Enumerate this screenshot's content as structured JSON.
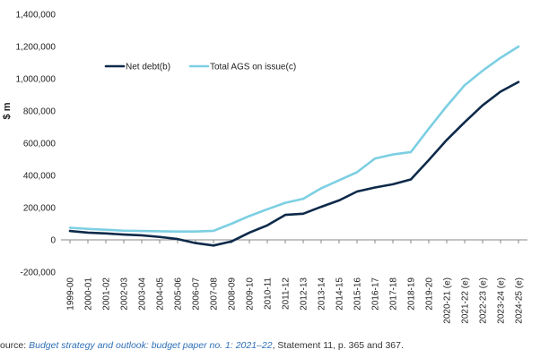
{
  "colors": {
    "net_debt": "#0d2a4a",
    "ags": "#7ccfe2",
    "axis": "#888888",
    "tick_text": "#222222",
    "source_link": "#2e6fb7"
  },
  "chart_data": {
    "type": "line",
    "ylabel": "$ m",
    "ylim": [
      -200000,
      1400000
    ],
    "yticks": [
      -200000,
      0,
      200000,
      400000,
      600000,
      800000,
      1000000,
      1200000,
      1400000
    ],
    "ytick_labels": [
      "-200,000",
      "0",
      "200,000",
      "400,000",
      "600,000",
      "800,000",
      "1,000,000",
      "1,200,000",
      "1,400,000"
    ],
    "grid": false,
    "legend_position": "top-left",
    "categories": [
      "1999-00",
      "2000-01",
      "2001-02",
      "2002-03",
      "2003-04",
      "2004-05",
      "2005-06",
      "2006-07",
      "2007-08",
      "2008-09",
      "2009-10",
      "2010-11",
      "2011-12",
      "2012-13",
      "2013-14",
      "2014-15",
      "2015-16",
      "2016-17",
      "2017-18",
      "2018-19",
      "2019-20",
      "2020-21 (e)",
      "2021-22 (e)",
      "2022-23 (e)",
      "2023-24 (e)",
      "2024-25 (e)"
    ],
    "series": [
      {
        "name": "Net debt(b)",
        "color_key": "net_debt",
        "values": [
          55000,
          45000,
          40000,
          33000,
          28000,
          18000,
          5000,
          -20000,
          -35000,
          -10000,
          45000,
          90000,
          155000,
          162000,
          205000,
          245000,
          300000,
          325000,
          345000,
          375000,
          495000,
          620000,
          730000,
          835000,
          920000,
          980000
        ]
      },
      {
        "name": "Total AGS on issue(c)",
        "color_key": "ags",
        "values": [
          75000,
          68000,
          63000,
          57000,
          55000,
          53000,
          52000,
          52000,
          56000,
          100000,
          148000,
          190000,
          230000,
          255000,
          320000,
          370000,
          420000,
          505000,
          530000,
          545000,
          690000,
          830000,
          960000,
          1050000,
          1130000,
          1200000
        ]
      }
    ]
  },
  "source": {
    "prefix": "ource: ",
    "title": "Budget strategy and outlook: budget paper no. 1: 2021–22",
    "suffix": ", Statement 11, p. 365 and 367."
  }
}
